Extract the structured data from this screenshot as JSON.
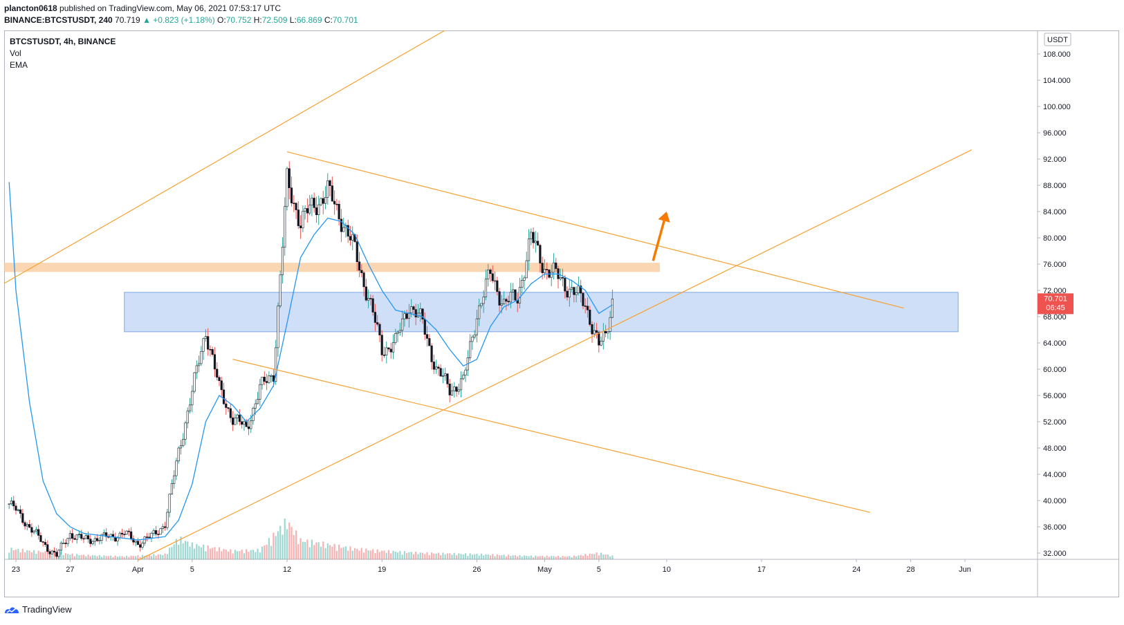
{
  "header": {
    "publisher": "plancton0618",
    "published_text": "published on TradingView.com, May 06, 2021 07:53:17 UTC",
    "symbol": "BINANCE:BTCSTUSDT, 240",
    "last": "70.719",
    "change": "▲ +0.823 (+1.18%)",
    "o_label": "O:",
    "o": "70.752",
    "h_label": "H:",
    "h": "72.509",
    "l_label": "L:",
    "l": "66.869",
    "c_label": "C:",
    "c": "70.701"
  },
  "legend": {
    "title": "BTCSTUSDT, 4h, BINANCE",
    "vol": "Vol",
    "ema": "EMA"
  },
  "price_axis": {
    "currency": "USDT",
    "last_price": "70.701",
    "countdown": "06:45"
  },
  "footer": {
    "brand": "TradingView"
  },
  "colors": {
    "up": "#26a69a",
    "down": "#ef5350",
    "candle_body": "#131722",
    "ema": "#2196f3",
    "trendline": "#f7a030",
    "resistance_zone": "#f8c89a",
    "support_zone": "#a7c4f2",
    "arrow": "#f57c00",
    "price_label_bg": "#ef5350"
  },
  "chart_data": {
    "type": "candlestick",
    "title": "BTCSTUSDT, 4h, BINANCE",
    "x_ticks": [
      "23",
      "27",
      "Apr",
      "5",
      "12",
      "19",
      "26",
      "May",
      "5",
      "10",
      "17",
      "24",
      "28",
      "Jun"
    ],
    "y_ticks": [
      "108.000",
      "104.000",
      "100.000",
      "96.000",
      "92.000",
      "88.000",
      "84.000",
      "80.000",
      "76.000",
      "72.000",
      "68.000",
      "64.000",
      "60.000",
      "56.000",
      "52.000",
      "48.000",
      "44.000",
      "40.000",
      "36.000",
      "32.000"
    ],
    "ylim": [
      30.9,
      112.6
    ],
    "x_range": [
      "2021-03-23",
      "2021-06-04"
    ],
    "price_path": [
      [
        "2021-03-22T12",
        39.5
      ],
      [
        "2021-03-23",
        38.5
      ],
      [
        "2021-03-24",
        36.0
      ],
      [
        "2021-03-25",
        33.5
      ],
      [
        "2021-03-26",
        31.6
      ],
      [
        "2021-03-27",
        35.0
      ],
      [
        "2021-03-28",
        34.0
      ],
      [
        "2021-03-30",
        34.5
      ],
      [
        "2021-03-31",
        35.0
      ],
      [
        "2021-04-01",
        33.5
      ],
      [
        "2021-04-02",
        34.5
      ],
      [
        "2021-04-03",
        36.5
      ],
      [
        "2021-04-04",
        47.5
      ],
      [
        "2021-04-05",
        56.5
      ],
      [
        "2021-04-06",
        66.0
      ],
      [
        "2021-04-07",
        57.0
      ],
      [
        "2021-04-08",
        52.5
      ],
      [
        "2021-04-09",
        51.0
      ],
      [
        "2021-04-10",
        57.0
      ],
      [
        "2021-04-11",
        59.5
      ],
      [
        "2021-04-12",
        88.5
      ],
      [
        "2021-04-13",
        82.5
      ],
      [
        "2021-04-14",
        85.0
      ],
      [
        "2021-04-15",
        87.0
      ],
      [
        "2021-04-16",
        83.0
      ],
      [
        "2021-04-17",
        78.0
      ],
      [
        "2021-04-18",
        71.0
      ],
      [
        "2021-04-19",
        63.0
      ],
      [
        "2021-04-20",
        64.0
      ],
      [
        "2021-04-21",
        70.0
      ],
      [
        "2021-04-22",
        67.0
      ],
      [
        "2021-04-23",
        60.0
      ],
      [
        "2021-04-24",
        57.0
      ],
      [
        "2021-04-25",
        58.0
      ],
      [
        "2021-04-26",
        68.5
      ],
      [
        "2021-04-27",
        74.5
      ],
      [
        "2021-04-28",
        70.0
      ],
      [
        "2021-04-29",
        71.0
      ],
      [
        "2021-04-30",
        80.0
      ],
      [
        "2021-05-01",
        75.5
      ],
      [
        "2021-05-02",
        74.0
      ],
      [
        "2021-05-03",
        72.0
      ],
      [
        "2021-05-04",
        70.0
      ],
      [
        "2021-05-05",
        63.5
      ],
      [
        "2021-05-05T12",
        65.0
      ],
      [
        "2021-05-06",
        70.7
      ]
    ],
    "ema_path": [
      [
        "2021-03-22T12",
        88.5
      ],
      [
        "2021-03-23",
        72.0
      ],
      [
        "2021-03-24",
        55.0
      ],
      [
        "2021-03-25",
        43.0
      ],
      [
        "2021-03-26",
        38.0
      ],
      [
        "2021-03-27",
        36.0
      ],
      [
        "2021-03-28",
        35.0
      ],
      [
        "2021-03-30",
        34.5
      ],
      [
        "2021-04-01",
        34.0
      ],
      [
        "2021-04-03",
        34.5
      ],
      [
        "2021-04-04",
        37.0
      ],
      [
        "2021-04-05",
        42.5
      ],
      [
        "2021-04-06",
        52.0
      ],
      [
        "2021-04-07",
        56.0
      ],
      [
        "2021-04-08",
        54.5
      ],
      [
        "2021-04-09",
        52.0
      ],
      [
        "2021-04-10",
        54.0
      ],
      [
        "2021-04-11",
        57.5
      ],
      [
        "2021-04-12",
        67.0
      ],
      [
        "2021-04-13",
        77.0
      ],
      [
        "2021-04-14",
        80.5
      ],
      [
        "2021-04-15",
        83.0
      ],
      [
        "2021-04-16",
        82.5
      ],
      [
        "2021-04-17",
        80.5
      ],
      [
        "2021-04-18",
        76.0
      ],
      [
        "2021-04-19",
        72.0
      ],
      [
        "2021-04-20",
        69.0
      ],
      [
        "2021-04-21",
        68.5
      ],
      [
        "2021-04-22",
        68.0
      ],
      [
        "2021-04-23",
        66.0
      ],
      [
        "2021-04-24",
        63.0
      ],
      [
        "2021-04-25",
        60.5
      ],
      [
        "2021-04-26",
        61.5
      ],
      [
        "2021-04-27",
        66.5
      ],
      [
        "2021-04-28",
        69.5
      ],
      [
        "2021-04-29",
        70.5
      ],
      [
        "2021-04-30",
        73.0
      ],
      [
        "2021-05-01",
        74.5
      ],
      [
        "2021-05-02",
        74.5
      ],
      [
        "2021-05-03",
        73.5
      ],
      [
        "2021-05-04",
        72.0
      ],
      [
        "2021-05-05",
        68.5
      ],
      [
        "2021-05-06",
        69.8
      ]
    ],
    "volume_path": [
      [
        "2021-03-22T12",
        0.25
      ],
      [
        "2021-03-24",
        0.2
      ],
      [
        "2021-03-26",
        0.15
      ],
      [
        "2021-03-28",
        0.1
      ],
      [
        "2021-03-31",
        0.07
      ],
      [
        "2021-04-03",
        0.12
      ],
      [
        "2021-04-04",
        0.5
      ],
      [
        "2021-04-05",
        0.35
      ],
      [
        "2021-04-06",
        0.3
      ],
      [
        "2021-04-08",
        0.2
      ],
      [
        "2021-04-10",
        0.22
      ],
      [
        "2021-04-12",
        0.9
      ],
      [
        "2021-04-13",
        0.45
      ],
      [
        "2021-04-15",
        0.35
      ],
      [
        "2021-04-17",
        0.25
      ],
      [
        "2021-04-19",
        0.2
      ],
      [
        "2021-04-22",
        0.15
      ],
      [
        "2021-04-26",
        0.12
      ],
      [
        "2021-04-30",
        0.08
      ],
      [
        "2021-05-03",
        0.07
      ],
      [
        "2021-05-05",
        0.15
      ],
      [
        "2021-05-06",
        0.08
      ]
    ],
    "resistance_zone": {
      "from": "2021-03-22",
      "to": "2021-05-09T12",
      "low": 74.8,
      "high": 76.2
    },
    "support_zone": {
      "from": "2021-03-31",
      "to": "2021-05-31T12",
      "low": 65.7,
      "high": 71.7
    },
    "trendlines": [
      {
        "from": [
          "2021-03-22",
          72.9
        ],
        "to": [
          "2021-04-24T12",
          112.6
        ]
      },
      {
        "from": [
          "2021-04-12",
          93.1
        ],
        "to": [
          "2021-05-27T12",
          69.3
        ]
      },
      {
        "from": [
          "2021-04-08",
          61.5
        ],
        "to": [
          "2021-05-25",
          38.2
        ]
      },
      {
        "from": [
          "2021-04-01",
          30.9
        ],
        "to": [
          "2021-06-01T12",
          93.4
        ]
      }
    ],
    "arrow": {
      "from": [
        "2021-05-09",
        76.5
      ],
      "to": [
        "2021-05-10",
        84.0
      ]
    },
    "last_price": 70.701
  }
}
